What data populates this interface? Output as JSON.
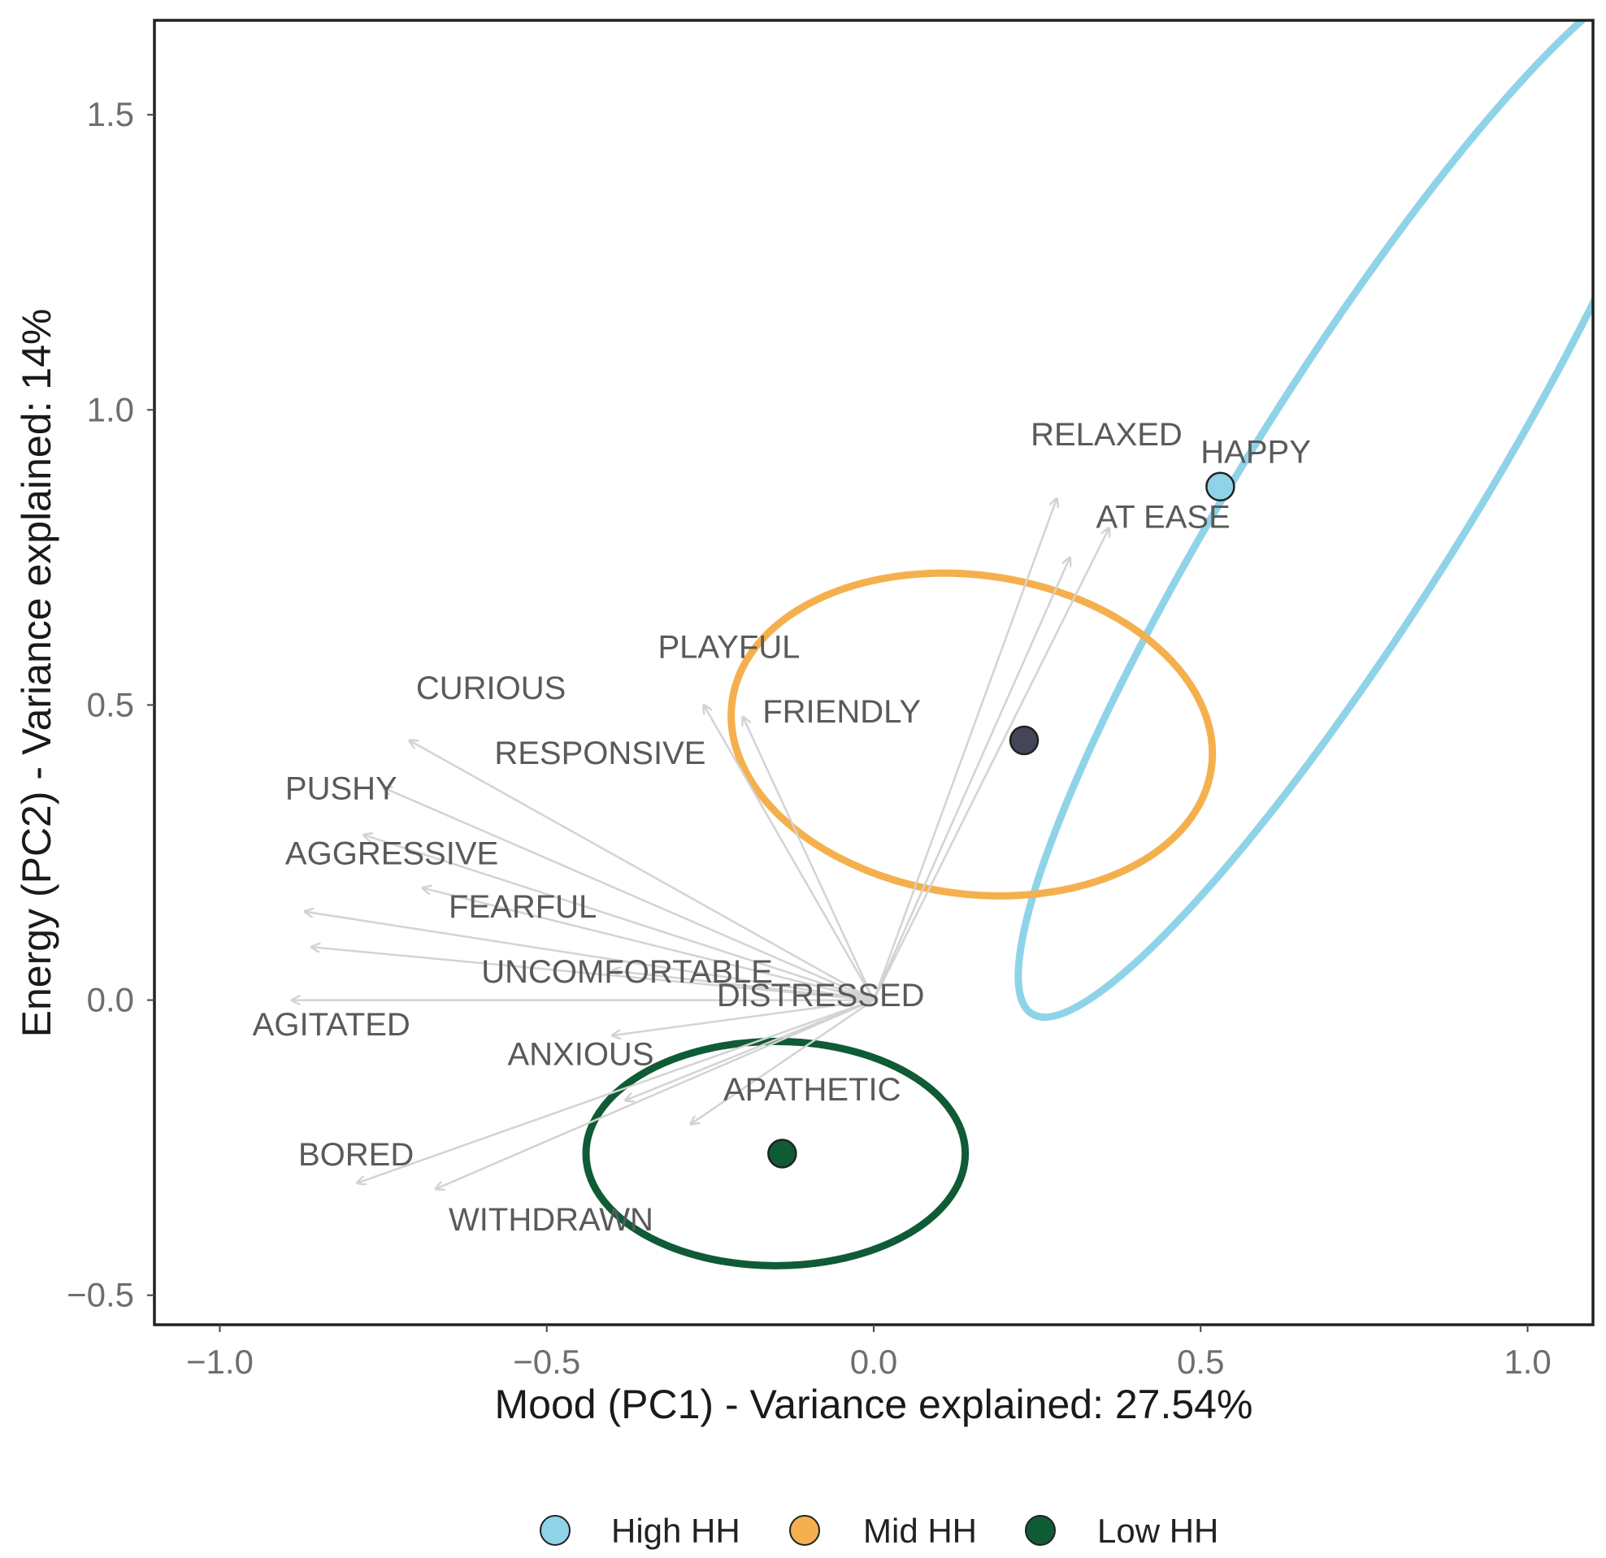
{
  "chart_data": {
    "type": "scatter",
    "subtype": "pca-biplot",
    "xlabel": "Mood (PC1) - Variance explained: 27.54%",
    "ylabel": "Energy (PC2) - Variance explained: 14%",
    "xlim": [
      -1.1,
      1.1
    ],
    "ylim": [
      -0.55,
      1.66
    ],
    "x_ticks": [
      -1.0,
      -0.5,
      0.0,
      0.5,
      1.0
    ],
    "x_tick_labels": [
      "−1.0",
      "−0.5",
      "0.0",
      "0.5",
      "1.0"
    ],
    "y_ticks": [
      -0.5,
      0.0,
      0.5,
      1.0,
      1.5
    ],
    "y_tick_labels": [
      "−0.5",
      "0.0",
      "0.5",
      "1.0",
      "1.5"
    ],
    "grid": false,
    "legend_position": "bottom",
    "arrow_color": "#d3d3d3",
    "variable_label_color": "#5a5a5a",
    "variables": [
      {
        "name": "RELAXED",
        "x": 0.28,
        "y": 0.85,
        "label_x": 0.24,
        "label_y": 0.94
      },
      {
        "name": "HAPPY",
        "x": 0.36,
        "y": 0.8,
        "label_x": 0.5,
        "label_y": 0.91
      },
      {
        "name": "AT EASE",
        "x": 0.3,
        "y": 0.75,
        "label_x": 0.34,
        "label_y": 0.8
      },
      {
        "name": "PLAYFUL",
        "x": -0.26,
        "y": 0.5,
        "label_x": -0.33,
        "label_y": 0.58
      },
      {
        "name": "FRIENDLY",
        "x": -0.2,
        "y": 0.48,
        "label_x": -0.17,
        "label_y": 0.47
      },
      {
        "name": "CURIOUS",
        "x": -0.71,
        "y": 0.44,
        "label_x": -0.7,
        "label_y": 0.51
      },
      {
        "name": "RESPONSIVE",
        "x": -0.75,
        "y": 0.36,
        "label_x": -0.58,
        "label_y": 0.4
      },
      {
        "name": "PUSHY",
        "x": -0.78,
        "y": 0.28,
        "label_x": -0.9,
        "label_y": 0.34
      },
      {
        "name": "AGGRESSIVE",
        "x": -0.87,
        "y": 0.15,
        "label_x": -0.9,
        "label_y": 0.23
      },
      {
        "name": "FEARFUL",
        "x": -0.69,
        "y": 0.19,
        "label_x": -0.65,
        "label_y": 0.14
      },
      {
        "name": "UNCOMFORTABLE",
        "x": -0.86,
        "y": 0.09,
        "label_x": -0.6,
        "label_y": 0.03
      },
      {
        "name": "DISTRESSED",
        "x": -0.4,
        "y": 0.05,
        "label_x": -0.24,
        "label_y": -0.01
      },
      {
        "name": "AGITATED",
        "x": -0.89,
        "y": 0.0,
        "label_x": -0.95,
        "label_y": -0.06
      },
      {
        "name": "ANXIOUS",
        "x": -0.4,
        "y": -0.06,
        "label_x": -0.56,
        "label_y": -0.11
      },
      {
        "name": "APATHETIC",
        "x": -0.38,
        "y": -0.17,
        "label_x": -0.23,
        "label_y": -0.17
      },
      {
        "name": "BORED",
        "x": -0.79,
        "y": -0.31,
        "label_x": -0.88,
        "label_y": -0.28
      },
      {
        "name": "WITHDRAWN",
        "x": -0.67,
        "y": -0.32,
        "label_x": -0.65,
        "label_y": -0.39
      },
      {
        "name": "",
        "x": -0.28,
        "y": -0.21,
        "label_x": 0,
        "label_y": 0
      }
    ],
    "groups": [
      {
        "name": "High HH",
        "color": "#8fd3e8",
        "centroid": [
          0.53,
          0.87
        ],
        "ellipse": {
          "cx": 0.74,
          "cy": 0.86,
          "rx": 0.94,
          "ry": 0.19,
          "angle_deg": 58
        }
      },
      {
        "name": "Mid HH",
        "color": "#f5b04e",
        "centroid": [
          0.23,
          0.44
        ],
        "ellipse": {
          "cx": 0.15,
          "cy": 0.45,
          "rx": 0.37,
          "ry": 0.27,
          "angle_deg": -8
        }
      },
      {
        "name": "Low HH",
        "color": "#0f5b35",
        "centroid": [
          -0.14,
          -0.26
        ],
        "ellipse": {
          "cx": -0.15,
          "cy": -0.26,
          "rx": 0.29,
          "ry": 0.19,
          "angle_deg": 0
        }
      }
    ],
    "centroid_fill_override": {
      "Mid HH": "#45455a"
    }
  }
}
